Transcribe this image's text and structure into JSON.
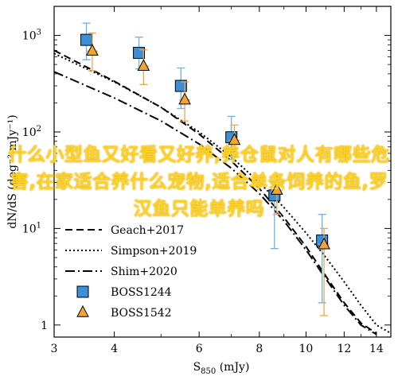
{
  "chart_data": {
    "type": "scatter",
    "title": "",
    "xlabel_main": "S",
    "xlabel_sub": "850",
    "xlabel_unit": " (mJy)",
    "ylabel": "dN/dS (deg⁻² mJy⁻¹)",
    "x_scale": "log",
    "y_scale": "log",
    "xlim": [
      3,
      15
    ],
    "ylim": [
      0.75,
      2000
    ],
    "x_tick_labels": [
      "3",
      "4",
      "6",
      "8",
      "10",
      "12",
      "14"
    ],
    "x_tick_values": [
      3,
      4,
      6,
      8,
      10,
      12,
      14
    ],
    "y_tick_labels": [
      "1",
      "10¹",
      "10²",
      "10³"
    ],
    "y_tick_values": [
      1,
      10,
      100,
      1000
    ],
    "legend_position": "bottom-left",
    "grid": false,
    "series": [
      {
        "name": "Geach+2017",
        "style": "dashed",
        "color": "#000000",
        "x": [
          3.0,
          4.0,
          5.0,
          6.0,
          7.0,
          8.0,
          9.0,
          10.0,
          11.0,
          12.0,
          13.0,
          14.0
        ],
        "y": [
          700,
          335,
          180,
          95,
          50,
          26,
          13,
          6.5,
          3.2,
          1.7,
          1.05,
          0.82
        ]
      },
      {
        "name": "Simpson+2019",
        "style": "dotted",
        "color": "#000000",
        "x": [
          3.0,
          4.0,
          5.0,
          6.0,
          7.0,
          8.0,
          9.0,
          10.0,
          11.0,
          12.0,
          13.0,
          14.0,
          15.0
        ],
        "y": [
          650,
          330,
          180,
          100,
          55,
          30,
          16.5,
          9,
          5,
          2.8,
          1.6,
          1.0,
          0.82
        ]
      },
      {
        "name": "Shim+2020",
        "style": "dashdot",
        "color": "#000000",
        "x": [
          3.0,
          4.0,
          5.0,
          6.0,
          7.0,
          8.0,
          9.0,
          10.0,
          11.0,
          12.0,
          13.0,
          14.0
        ],
        "y": [
          420,
          225,
          130,
          75,
          42,
          23,
          12,
          6,
          3,
          1.6,
          1.0,
          0.8
        ]
      },
      {
        "name": "BOSS1244",
        "marker": "square",
        "color": "#3b8fd9",
        "err_color": "#6fb0e6",
        "points": [
          {
            "x": 3.5,
            "y": 900,
            "lo": 560,
            "hi": 1340
          },
          {
            "x": 4.5,
            "y": 660,
            "lo": 450,
            "hi": 960
          },
          {
            "x": 5.5,
            "y": 300,
            "lo": 175,
            "hi": 460
          },
          {
            "x": 7.0,
            "y": 88,
            "lo": 52,
            "hi": 145
          },
          {
            "x": 8.6,
            "y": 22,
            "lo": 6.2,
            "hi": 30
          },
          {
            "x": 10.8,
            "y": 7.5,
            "lo": 1.7,
            "hi": 14
          }
        ]
      },
      {
        "name": "BOSS1542",
        "marker": "triangle",
        "color": "#f2a531",
        "err_color": "#e8a848",
        "points": [
          {
            "x": 3.6,
            "y": 690,
            "lo": 430,
            "hi": 1060
          },
          {
            "x": 4.6,
            "y": 480,
            "lo": 310,
            "hi": 710
          },
          {
            "x": 5.6,
            "y": 215,
            "lo": 130,
            "hi": 330
          },
          {
            "x": 7.1,
            "y": 82,
            "lo": 55,
            "hi": 118
          },
          {
            "x": 8.7,
            "y": 25,
            "lo": 14,
            "hi": 36
          },
          {
            "x": 10.9,
            "y": 6.8,
            "lo": 1.25,
            "hi": 10
          }
        ]
      }
    ]
  },
  "overlay_text": "什么小型鱼又好看又好养,养仓鼠对人有哪些危害,在家适合养什么宠物,适合单条饲养的鱼,罗汉鱼只能单养吗"
}
